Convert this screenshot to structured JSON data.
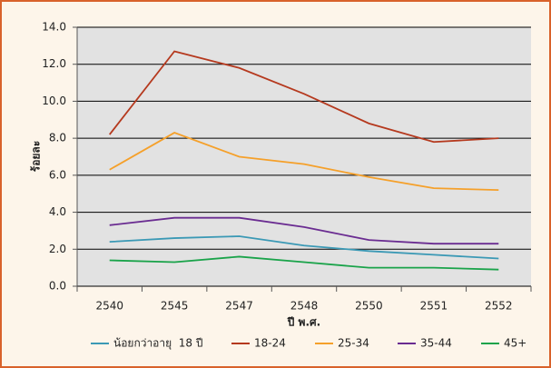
{
  "chart_data": {
    "type": "line",
    "x_label": "ปี พ.ศ.",
    "y_label": "ร้อยละ",
    "categories": [
      "2540",
      "2545",
      "2547",
      "2548",
      "2550",
      "2551",
      "2552"
    ],
    "series": [
      {
        "name": "น้อยกว่าอายุ  18 ปี",
        "color": "#3b99b5",
        "values": [
          2.4,
          2.6,
          2.7,
          2.2,
          1.9,
          1.7,
          1.5
        ]
      },
      {
        "name": "18-24",
        "color": "#b5391e",
        "values": [
          8.2,
          12.7,
          11.8,
          10.4,
          8.8,
          7.8,
          8.0
        ]
      },
      {
        "name": "25-34",
        "color": "#f5a02a",
        "values": [
          6.3,
          8.3,
          7.0,
          6.6,
          5.9,
          5.3,
          5.2
        ]
      },
      {
        "name": "35-44",
        "color": "#6a2c91",
        "values": [
          3.3,
          3.7,
          3.7,
          3.2,
          2.5,
          2.3,
          2.3
        ]
      },
      {
        "name": "45+",
        "color": "#1aa34a",
        "values": [
          1.4,
          1.3,
          1.6,
          1.3,
          1.0,
          1.0,
          0.9
        ]
      }
    ],
    "ylim": [
      0,
      14
    ],
    "yticks": [
      {
        "value": 0,
        "label": "0.0"
      },
      {
        "value": 2,
        "label": "2.0"
      },
      {
        "value": 4,
        "label": "4.0"
      },
      {
        "value": 6,
        "label": "6.0"
      },
      {
        "value": 8,
        "label": "8.0"
      },
      {
        "value": 10,
        "label": "10.0"
      },
      {
        "value": 12,
        "label": "12.0"
      },
      {
        "value": 14,
        "label": "14.0"
      }
    ],
    "grid": true
  }
}
